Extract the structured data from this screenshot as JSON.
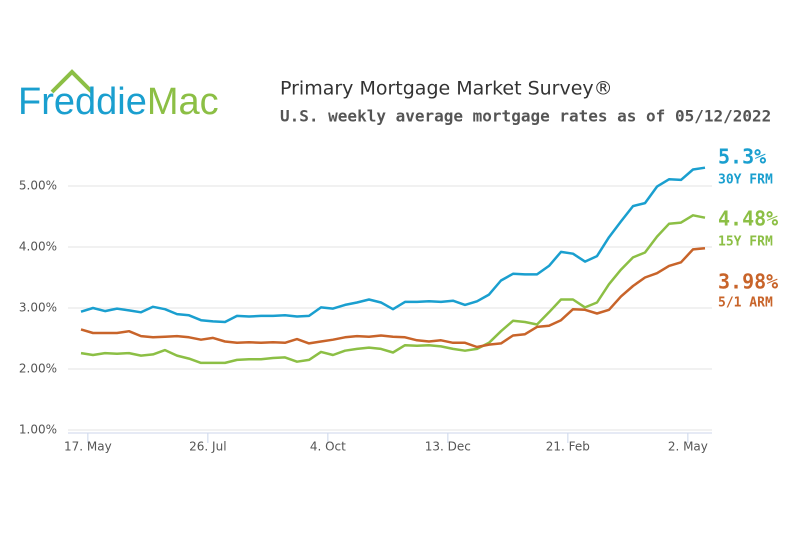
{
  "logo": {
    "first": "Freddie",
    "second": "Mac"
  },
  "chart_data": {
    "type": "line",
    "title": "Primary Mortgage Market Survey®",
    "subtitle": "U.S. weekly average mortgage rates as of 05/12/2022",
    "categories": [
      null,
      "17. May",
      null,
      null,
      null,
      null,
      null,
      null,
      null,
      null,
      null,
      "26. Jul",
      null,
      null,
      null,
      null,
      null,
      null,
      null,
      null,
      null,
      "4. Oct",
      null,
      null,
      null,
      null,
      null,
      null,
      null,
      null,
      null,
      "13. Dec",
      null,
      null,
      null,
      null,
      null,
      null,
      null,
      null,
      null,
      "21. Feb",
      null,
      null,
      null,
      null,
      null,
      null,
      null,
      null,
      null,
      "2. May",
      null
    ],
    "ylim": [
      1,
      6
    ],
    "yticks": [
      {
        "value": 1,
        "label": "1.00%"
      },
      {
        "value": 2,
        "label": "2.00%"
      },
      {
        "value": 3,
        "label": "3.00%"
      },
      {
        "value": 4,
        "label": "4.00%"
      },
      {
        "value": 5,
        "label": "5.00%"
      }
    ],
    "grid": true,
    "series": [
      {
        "name": "30Y FRM",
        "color": "#1a9fcf",
        "values": [
          2.94,
          3.0,
          2.95,
          2.99,
          2.96,
          2.93,
          3.02,
          2.98,
          2.9,
          2.88,
          2.8,
          2.78,
          2.77,
          2.87,
          2.86,
          2.87,
          2.87,
          2.88,
          2.86,
          2.87,
          3.01,
          2.99,
          3.05,
          3.09,
          3.14,
          3.09,
          2.98,
          3.1,
          3.1,
          3.11,
          3.1,
          3.12,
          3.05,
          3.11,
          3.22,
          3.45,
          3.56,
          3.55,
          3.55,
          3.69,
          3.92,
          3.89,
          3.76,
          3.85,
          4.16,
          4.42,
          4.67,
          4.72,
          4.99,
          5.11,
          5.1,
          5.27,
          5.3
        ],
        "value_labels": [
          null,
          null,
          null,
          null,
          null,
          null,
          null,
          null,
          null,
          null,
          null,
          null,
          null,
          null,
          null,
          null,
          null,
          null,
          null,
          null,
          null,
          null,
          null,
          null,
          null,
          null,
          null,
          null,
          null,
          null,
          null,
          null,
          null,
          null,
          null,
          null,
          null,
          null,
          null,
          null,
          null,
          null,
          null,
          null,
          null,
          null,
          null,
          null,
          null,
          null,
          null,
          null,
          "5.3%"
        ]
      },
      {
        "name": "15Y FRM",
        "color": "#8cbf45",
        "values": [
          2.26,
          2.23,
          2.26,
          2.25,
          2.26,
          2.22,
          2.24,
          2.31,
          2.22,
          2.17,
          2.1,
          2.1,
          2.1,
          2.15,
          2.16,
          2.16,
          2.18,
          2.19,
          2.12,
          2.15,
          2.28,
          2.23,
          2.3,
          2.33,
          2.35,
          2.33,
          2.27,
          2.39,
          2.38,
          2.39,
          2.37,
          2.33,
          2.3,
          2.33,
          2.43,
          2.62,
          2.79,
          2.77,
          2.73,
          2.93,
          3.14,
          3.14,
          3.01,
          3.09,
          3.39,
          3.63,
          3.83,
          3.91,
          4.17,
          4.38,
          4.4,
          4.52,
          4.48
        ],
        "value_labels": [
          null,
          null,
          null,
          null,
          null,
          null,
          null,
          null,
          null,
          null,
          null,
          null,
          null,
          null,
          null,
          null,
          null,
          null,
          null,
          null,
          null,
          null,
          null,
          null,
          null,
          null,
          null,
          null,
          null,
          null,
          null,
          null,
          null,
          null,
          null,
          null,
          null,
          null,
          null,
          null,
          null,
          null,
          null,
          null,
          null,
          null,
          null,
          null,
          null,
          null,
          null,
          null,
          "4.48%"
        ]
      },
      {
        "name": "5/1 ARM",
        "color": "#c8642a",
        "values": [
          2.65,
          2.59,
          2.59,
          2.59,
          2.62,
          2.54,
          2.52,
          2.53,
          2.54,
          2.52,
          2.48,
          2.51,
          2.45,
          2.43,
          2.44,
          2.43,
          2.44,
          2.43,
          2.49,
          2.42,
          2.45,
          2.48,
          2.52,
          2.54,
          2.53,
          2.55,
          2.53,
          2.52,
          2.47,
          2.45,
          2.47,
          2.43,
          2.43,
          2.36,
          2.4,
          2.42,
          2.55,
          2.57,
          2.69,
          2.71,
          2.8,
          2.98,
          2.97,
          2.91,
          2.97,
          3.19,
          3.36,
          3.5,
          3.57,
          3.69,
          3.75,
          3.96,
          3.98
        ],
        "value_labels": [
          null,
          null,
          null,
          null,
          null,
          null,
          null,
          null,
          null,
          null,
          null,
          null,
          null,
          null,
          null,
          null,
          null,
          null,
          null,
          null,
          null,
          null,
          null,
          null,
          null,
          null,
          null,
          null,
          null,
          null,
          null,
          null,
          null,
          null,
          null,
          null,
          null,
          null,
          null,
          null,
          null,
          null,
          null,
          null,
          null,
          null,
          null,
          null,
          null,
          null,
          null,
          null,
          "3.98%"
        ]
      }
    ]
  }
}
